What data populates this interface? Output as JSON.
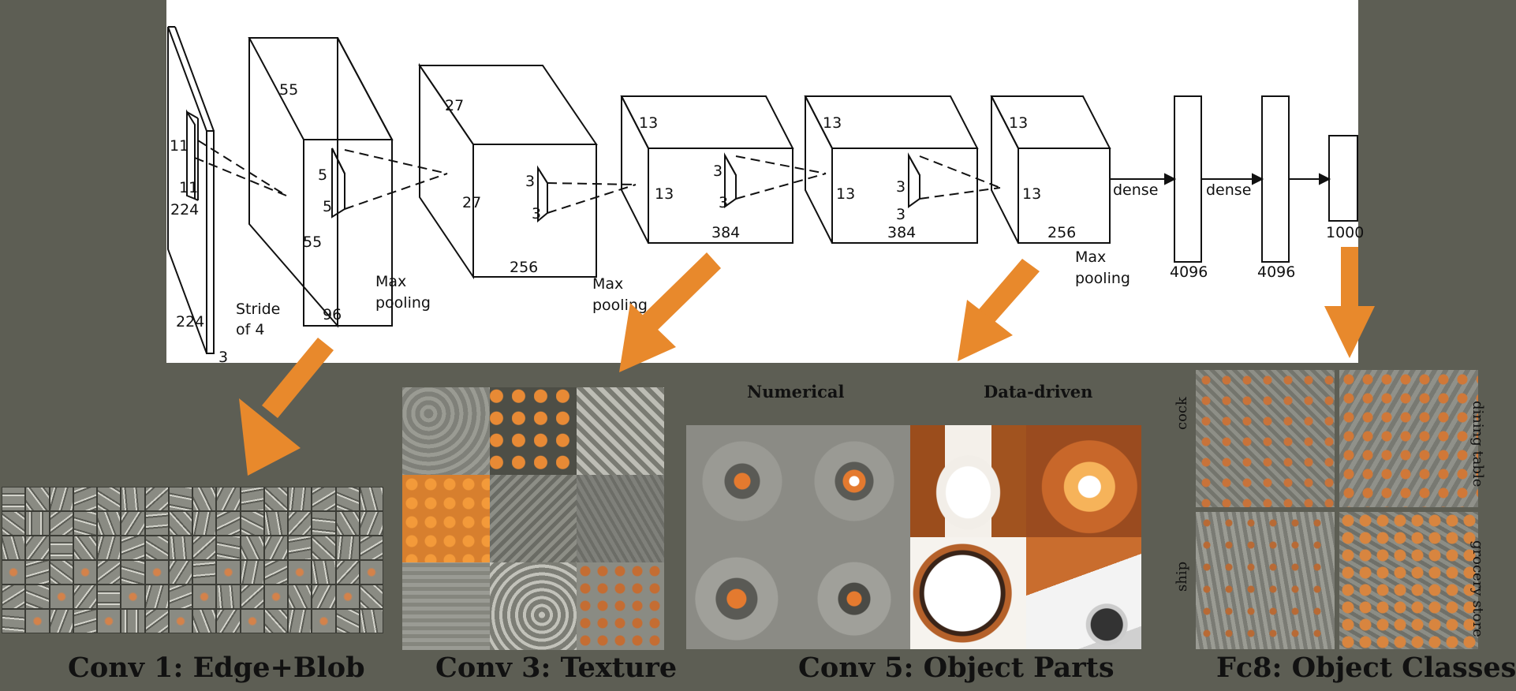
{
  "architecture": {
    "labels": {
      "in_w": "224",
      "in_h": "224",
      "in_d": "3",
      "k1a": "11",
      "k1b": "11",
      "c1_w": "55",
      "c1_h": "55",
      "c1_d": "96",
      "k2a": "5",
      "k2b": "5",
      "stride": [
        "Stride",
        "of 4"
      ],
      "pool1": [
        "Max",
        "pooling"
      ],
      "c2_w": "27",
      "c2_h": "27",
      "c2_d": "256",
      "k3a": "3",
      "k3b": "3",
      "pool2": [
        "Max",
        "pooling"
      ],
      "c3_w": "13",
      "c3_h": "13",
      "c3_d": "384",
      "k4a": "3",
      "k4b": "3",
      "c4_w": "13",
      "c4_h": "13",
      "c4_d": "384",
      "k5a": "3",
      "k5b": "3",
      "c5_w": "13",
      "c5_h": "13",
      "c5_d": "256",
      "pool3": [
        "Max",
        "pooling"
      ],
      "dense1": "dense",
      "dense2": "dense",
      "fc6": "4096",
      "fc7": "4096",
      "fc8": "1000"
    }
  },
  "panels": {
    "conv1": {
      "caption": "Conv 1: Edge+Blob"
    },
    "conv3": {
      "caption": "Conv 3: Texture"
    },
    "conv5": {
      "caption": "Conv 5: Object Parts",
      "numerical": "Numerical",
      "data_driven": "Data-driven"
    },
    "fc8": {
      "caption": "Fc8: Object Classes",
      "classes": [
        "cock",
        "dining table",
        "ship",
        "grocery store"
      ]
    }
  },
  "colors": {
    "arrow": "#e8892c",
    "background": "#5d5e54",
    "tile": "#8a8b83",
    "orange": "#c8733a"
  }
}
